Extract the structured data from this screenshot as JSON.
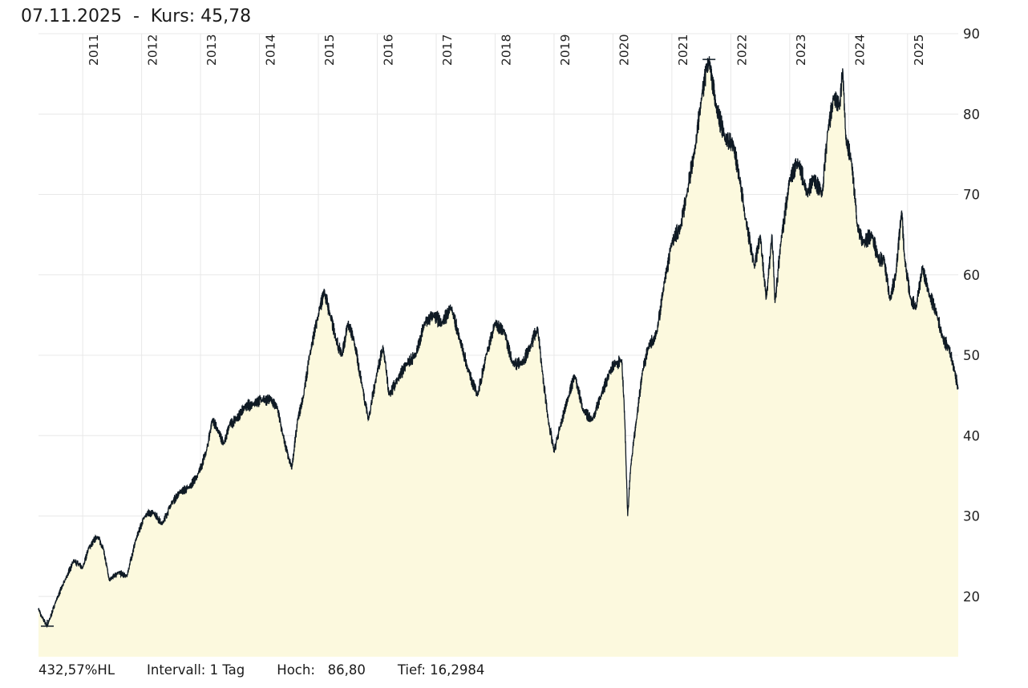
{
  "header": {
    "date": "07.11.2025",
    "separator": "-",
    "kurs_label": "Kurs:",
    "kurs_value": "45,78"
  },
  "footer": {
    "change": "432,57%HL",
    "interval": "Intervall: 1 Tag",
    "high": "Hoch:   86,80",
    "low": "Tief: 16,2984"
  },
  "colors": {
    "fill": "#fcf9de",
    "line": "#0f1a24",
    "grid": "#e8e8e8"
  },
  "chart_data": {
    "type": "area",
    "title": "07.11.2025 - Kurs: 45,78",
    "xlabel": "",
    "ylabel": "",
    "x_range": [
      2010.25,
      2025.86
    ],
    "ylim": [
      12.5,
      90
    ],
    "grid": true,
    "y_axis_position": "right",
    "year_ticks": [
      "2011",
      "2012",
      "2013",
      "2014",
      "2015",
      "2016",
      "2017",
      "2018",
      "2019",
      "2020",
      "2021",
      "2022",
      "2023",
      "2024",
      "2025"
    ],
    "y_ticks": [
      20,
      30,
      40,
      50,
      60,
      70,
      80,
      90
    ],
    "high": {
      "value": 86.8,
      "t": 2021.63
    },
    "low": {
      "value": 16.2984,
      "t": 2010.4
    },
    "series": [
      {
        "name": "Kurs",
        "points": [
          [
            2010.25,
            18.5
          ],
          [
            2010.3,
            17.5
          ],
          [
            2010.4,
            16.3
          ],
          [
            2010.55,
            19.5
          ],
          [
            2010.7,
            22
          ],
          [
            2010.85,
            24.5
          ],
          [
            2011.0,
            23.5
          ],
          [
            2011.1,
            26
          ],
          [
            2011.25,
            27.5
          ],
          [
            2011.35,
            26
          ],
          [
            2011.45,
            22
          ],
          [
            2011.6,
            23
          ],
          [
            2011.75,
            22.5
          ],
          [
            2011.9,
            27
          ],
          [
            2012.05,
            30
          ],
          [
            2012.2,
            30.5
          ],
          [
            2012.35,
            29
          ],
          [
            2012.5,
            31.5
          ],
          [
            2012.65,
            33
          ],
          [
            2012.8,
            33.5
          ],
          [
            2012.95,
            35
          ],
          [
            2013.1,
            38
          ],
          [
            2013.2,
            42
          ],
          [
            2013.3,
            40.5
          ],
          [
            2013.4,
            39
          ],
          [
            2013.5,
            41.5
          ],
          [
            2013.6,
            42
          ],
          [
            2013.75,
            43.5
          ],
          [
            2013.9,
            44
          ],
          [
            2014.05,
            44.5
          ],
          [
            2014.2,
            44.5
          ],
          [
            2014.3,
            43.5
          ],
          [
            2014.4,
            40
          ],
          [
            2014.5,
            37
          ],
          [
            2014.55,
            36
          ],
          [
            2014.65,
            42
          ],
          [
            2014.75,
            45
          ],
          [
            2014.85,
            50
          ],
          [
            2015.0,
            55
          ],
          [
            2015.1,
            58
          ],
          [
            2015.2,
            55
          ],
          [
            2015.3,
            52
          ],
          [
            2015.4,
            50
          ],
          [
            2015.5,
            54
          ],
          [
            2015.6,
            52
          ],
          [
            2015.75,
            46
          ],
          [
            2015.85,
            42
          ],
          [
            2016.0,
            48
          ],
          [
            2016.1,
            51
          ],
          [
            2016.2,
            45
          ],
          [
            2016.35,
            47
          ],
          [
            2016.5,
            49
          ],
          [
            2016.65,
            50
          ],
          [
            2016.8,
            54
          ],
          [
            2016.95,
            55
          ],
          [
            2017.1,
            54
          ],
          [
            2017.25,
            56
          ],
          [
            2017.4,
            52
          ],
          [
            2017.55,
            48
          ],
          [
            2017.7,
            45
          ],
          [
            2017.85,
            50
          ],
          [
            2018.0,
            54
          ],
          [
            2018.15,
            53
          ],
          [
            2018.3,
            49
          ],
          [
            2018.45,
            49
          ],
          [
            2018.6,
            51
          ],
          [
            2018.72,
            53.5
          ],
          [
            2018.8,
            48
          ],
          [
            2018.9,
            42
          ],
          [
            2019.0,
            38
          ],
          [
            2019.1,
            41
          ],
          [
            2019.25,
            45
          ],
          [
            2019.35,
            47.5
          ],
          [
            2019.5,
            43
          ],
          [
            2019.65,
            42
          ],
          [
            2019.8,
            45
          ],
          [
            2019.95,
            48
          ],
          [
            2020.05,
            49
          ],
          [
            2020.15,
            49.5
          ],
          [
            2020.2,
            42
          ],
          [
            2020.25,
            30
          ],
          [
            2020.3,
            36
          ],
          [
            2020.4,
            42
          ],
          [
            2020.5,
            48
          ],
          [
            2020.6,
            51
          ],
          [
            2020.75,
            53
          ],
          [
            2020.85,
            58
          ],
          [
            2021.0,
            64
          ],
          [
            2021.15,
            66
          ],
          [
            2021.25,
            70
          ],
          [
            2021.4,
            76
          ],
          [
            2021.5,
            82
          ],
          [
            2021.63,
            86.8
          ],
          [
            2021.75,
            81
          ],
          [
            2021.9,
            77
          ],
          [
            2022.05,
            76
          ],
          [
            2022.15,
            72
          ],
          [
            2022.25,
            67
          ],
          [
            2022.4,
            61
          ],
          [
            2022.5,
            65
          ],
          [
            2022.6,
            57
          ],
          [
            2022.7,
            65
          ],
          [
            2022.75,
            56.5
          ],
          [
            2022.85,
            64
          ],
          [
            2023.0,
            72
          ],
          [
            2023.15,
            74
          ],
          [
            2023.3,
            70
          ],
          [
            2023.4,
            72
          ],
          [
            2023.55,
            70
          ],
          [
            2023.65,
            78
          ],
          [
            2023.75,
            82
          ],
          [
            2023.85,
            81
          ],
          [
            2023.9,
            85.5
          ],
          [
            2023.95,
            77
          ],
          [
            2024.05,
            74
          ],
          [
            2024.15,
            66
          ],
          [
            2024.25,
            64
          ],
          [
            2024.4,
            65
          ],
          [
            2024.5,
            62
          ],
          [
            2024.6,
            62
          ],
          [
            2024.7,
            57
          ],
          [
            2024.8,
            60
          ],
          [
            2024.9,
            68
          ],
          [
            2024.95,
            62
          ],
          [
            2025.05,
            57
          ],
          [
            2025.15,
            56
          ],
          [
            2025.25,
            61
          ],
          [
            2025.35,
            58
          ],
          [
            2025.5,
            55
          ],
          [
            2025.6,
            52
          ],
          [
            2025.7,
            51
          ],
          [
            2025.8,
            48
          ],
          [
            2025.86,
            45.78
          ]
        ]
      }
    ]
  }
}
